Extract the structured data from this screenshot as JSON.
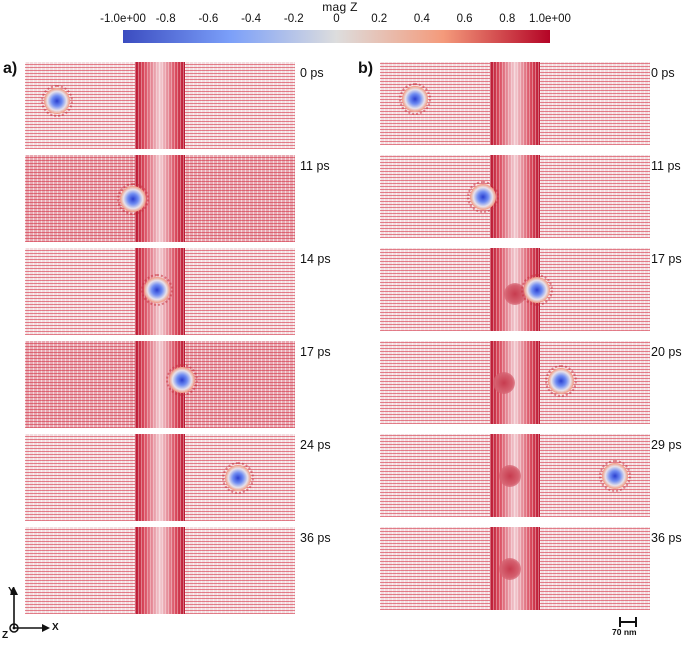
{
  "colorbar": {
    "title": "mag Z",
    "ticks": [
      "-1.0e+00",
      "-0.8",
      "-0.6",
      "-0.4",
      "-0.2",
      "0",
      "0.2",
      "0.4",
      "0.6",
      "0.8",
      "1.0e+00"
    ],
    "colors": [
      "#3b4cc0",
      "#dddddd",
      "#b40426"
    ]
  },
  "panels": [
    {
      "label": "a)",
      "frames": [
        {
          "time": "0 ps",
          "skyrmion_x_frac": 0.12,
          "skyrmion_y_frac": 0.45
        },
        {
          "time": "11 ps",
          "skyrmion_x_frac": 0.4,
          "skyrmion_y_frac": 0.5
        },
        {
          "time": "14 ps",
          "skyrmion_x_frac": 0.49,
          "skyrmion_y_frac": 0.48
        },
        {
          "time": "17 ps",
          "skyrmion_x_frac": 0.58,
          "skyrmion_y_frac": 0.45
        },
        {
          "time": "24 ps",
          "skyrmion_x_frac": 0.79,
          "skyrmion_y_frac": 0.5
        },
        {
          "time": "36 ps"
        }
      ]
    },
    {
      "label": "b)",
      "frames": [
        {
          "time": "0 ps",
          "skyrmion_x_frac": 0.13,
          "skyrmion_y_frac": 0.45
        },
        {
          "time": "11 ps",
          "skyrmion_x_frac": 0.38,
          "skyrmion_y_frac": 0.5
        },
        {
          "time": "17 ps",
          "skyrmion_x_frac": 0.58,
          "skyrmion_y_frac": 0.5,
          "blob_x_frac": 0.5,
          "blob_y_frac": 0.55
        },
        {
          "time": "20 ps",
          "skyrmion_x_frac": 0.67,
          "skyrmion_y_frac": 0.48,
          "blob_x_frac": 0.46,
          "blob_y_frac": 0.5
        },
        {
          "time": "29 ps",
          "skyrmion_x_frac": 0.87,
          "skyrmion_y_frac": 0.5,
          "blob_x_frac": 0.48,
          "blob_y_frac": 0.5
        },
        {
          "time": "36 ps",
          "blob_x_frac": 0.48,
          "blob_y_frac": 0.5
        }
      ]
    }
  ],
  "axes": {
    "y": "Y",
    "x": "X",
    "z": "Z"
  },
  "scalebar": {
    "label": "70 nm"
  }
}
